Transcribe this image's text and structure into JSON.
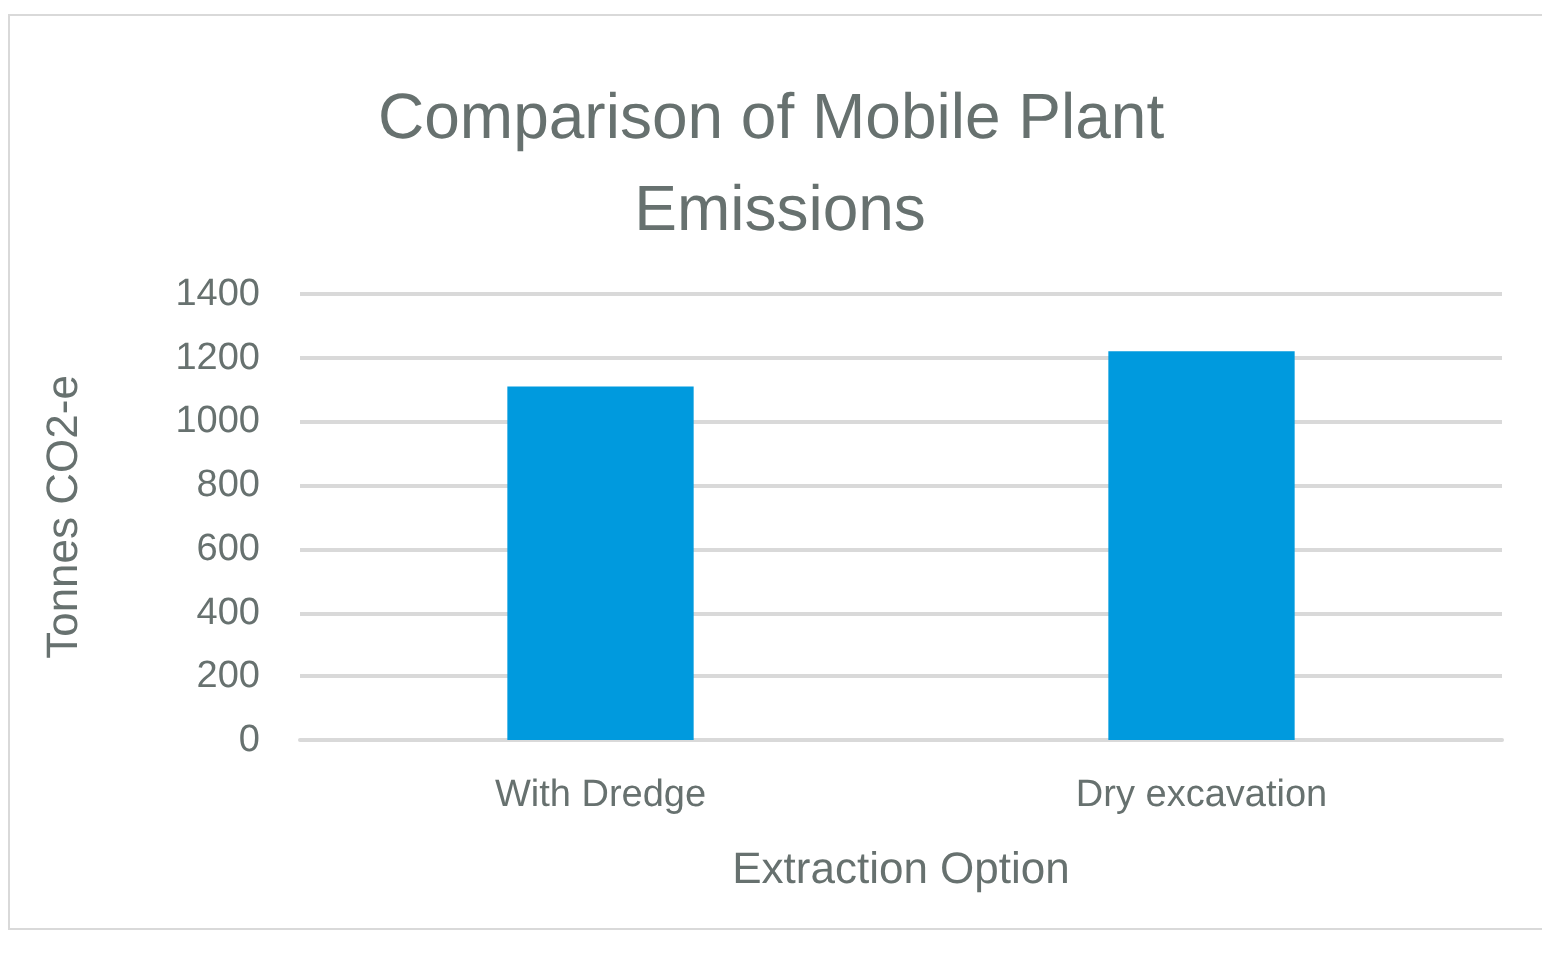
{
  "chart_data": {
    "type": "bar",
    "title": "Comparison of Mobile Plant Emissions",
    "xlabel": "Extraction Option",
    "ylabel": "Tonnes CO2-e",
    "categories": [
      "With Dredge",
      "Dry excavation"
    ],
    "values": [
      1110,
      1220
    ],
    "color": "#009ade",
    "ylim": [
      0,
      1400
    ],
    "yticks": [
      0,
      200,
      400,
      600,
      800,
      1000,
      1200,
      1400
    ],
    "grid": "y"
  }
}
